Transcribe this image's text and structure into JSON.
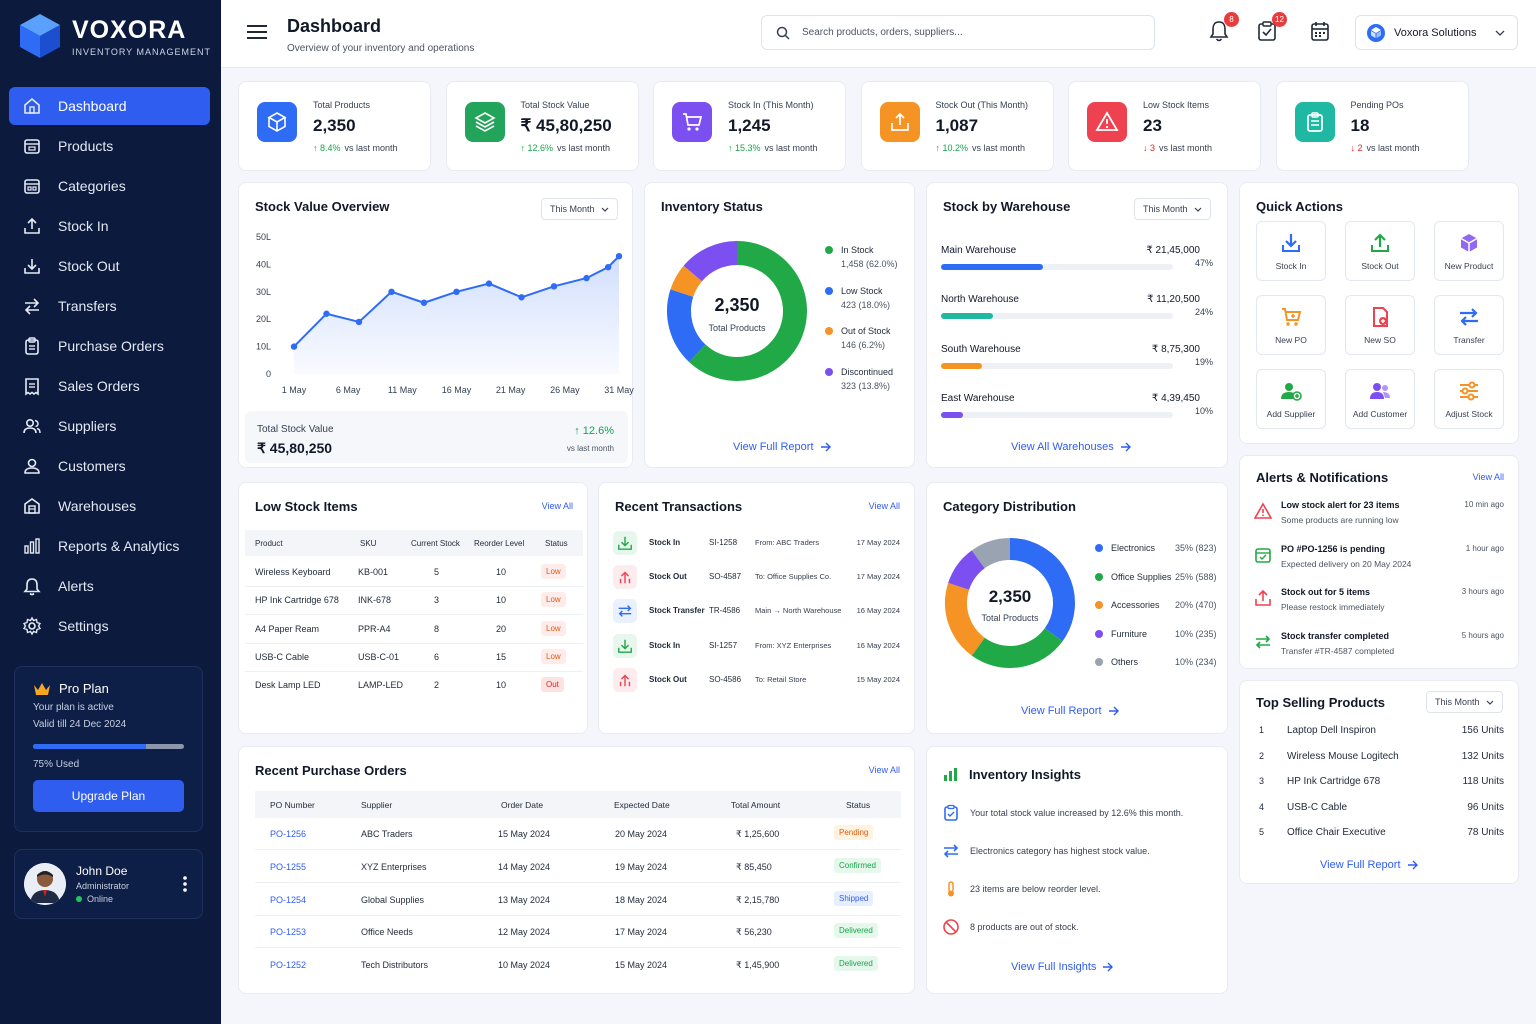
{
  "brand": {
    "name": "VOXORA",
    "subtitle": "INVENTORY MANAGEMENT"
  },
  "nav": [
    {
      "label": "Dashboard",
      "icon": "home-icon"
    },
    {
      "label": "Products",
      "icon": "box-icon"
    },
    {
      "label": "Categories",
      "icon": "calendar-grid-icon"
    },
    {
      "label": "Stock In",
      "icon": "upload-tray-icon"
    },
    {
      "label": "Stock Out",
      "icon": "download-tray-icon"
    },
    {
      "label": "Transfers",
      "icon": "arrows-icon"
    },
    {
      "label": "Purchase Orders",
      "icon": "clipboard-icon"
    },
    {
      "label": "Sales Orders",
      "icon": "receipt-icon"
    },
    {
      "label": "Suppliers",
      "icon": "users-icon"
    },
    {
      "label": "Customers",
      "icon": "user-icon"
    },
    {
      "label": "Warehouses",
      "icon": "building-icon"
    },
    {
      "label": "Reports & Analytics",
      "icon": "bar-chart-icon"
    },
    {
      "label": "Alerts",
      "icon": "bell-icon"
    },
    {
      "label": "Settings",
      "icon": "gear-icon"
    }
  ],
  "plan": {
    "title": "Pro Plan",
    "status": "Your plan is active",
    "valid": "Valid till 24 Dec 2024",
    "used_label": "75% Used",
    "used": 0.75,
    "button": "Upgrade Plan"
  },
  "user": {
    "name": "John Doe",
    "role": "Administrator",
    "status": "Online"
  },
  "header": {
    "title": "Dashboard",
    "subtitle": "Overview of your inventory and operations",
    "search_placeholder": "Search products, orders, suppliers...",
    "notif_count": "8",
    "orders_count": "12",
    "org": "Voxora Solutions"
  },
  "stats": [
    {
      "label": "Total Products",
      "value": "2,350",
      "change": "8.4%",
      "note": "vs last month",
      "dir": "up",
      "color": "#2f6cf5",
      "icon": "cube-icon"
    },
    {
      "label": "Total Stock Value",
      "value": "₹ 45,80,250",
      "change": "12.6%",
      "note": "vs last month",
      "dir": "up",
      "color": "#22a45a",
      "icon": "layers-icon"
    },
    {
      "label": "Stock In (This Month)",
      "value": "1,245",
      "change": "15.3%",
      "note": "vs last month",
      "dir": "up",
      "color": "#7b4ff0",
      "icon": "cart-icon"
    },
    {
      "label": "Stock Out (This Month)",
      "value": "1,087",
      "change": "10.2%",
      "note": "vs last month",
      "dir": "up",
      "color": "#f59324",
      "icon": "tray-out-icon"
    },
    {
      "label": "Low Stock Items",
      "value": "23",
      "change": "3",
      "note": "vs last month",
      "dir": "down",
      "color": "#ef4250",
      "icon": "warning-icon"
    },
    {
      "label": "Pending POs",
      "value": "18",
      "change": "2",
      "note": "vs last month",
      "dir": "down",
      "color": "#1fb9a3",
      "icon": "clipboard-icon"
    }
  ],
  "stock_value": {
    "title": "Stock Value Overview",
    "period": "This Month",
    "total_label": "Total Stock Value",
    "total": "₹ 45,80,250",
    "change": "12.6%",
    "change_note": "vs last month"
  },
  "chart_data": {
    "type": "area",
    "title": "Stock Value Overview",
    "x": [
      1,
      4,
      7,
      10,
      13,
      16,
      19,
      22,
      25,
      28,
      30,
      31
    ],
    "values": [
      10,
      22,
      19,
      30,
      26,
      30,
      33,
      28,
      32,
      35,
      39,
      43
    ],
    "xticks": [
      "1 May",
      "6 May",
      "11 May",
      "16 May",
      "21 May",
      "26 May",
      "31 May"
    ],
    "yticks": [
      "0",
      "10L",
      "20L",
      "30L",
      "40L",
      "50L"
    ],
    "ylim": [
      0,
      50
    ],
    "grid": false,
    "color": "#2f6cf5"
  },
  "inventory_status": {
    "title": "Inventory Status",
    "center_value": "2,350",
    "center_label": "Total Products",
    "link": "View Full Report",
    "items": [
      {
        "name": "In Stock",
        "detail": "1,458 (62.0%)",
        "share": 62.0,
        "color": "#22a947"
      },
      {
        "name": "Low Stock",
        "detail": "423 (18.0%)",
        "share": 18.0,
        "color": "#2f6cf5"
      },
      {
        "name": "Out of Stock",
        "detail": "146 (6.2%)",
        "share": 6.2,
        "color": "#f59324"
      },
      {
        "name": "Discontinued",
        "detail": "323 (13.8%)",
        "share": 13.8,
        "color": "#7b4ff0"
      }
    ]
  },
  "warehouses": {
    "title": "Stock by Warehouse",
    "period": "This Month",
    "link": "View All Warehouses",
    "items": [
      {
        "name": "Main Warehouse",
        "value": "₹ 21,45,000",
        "pct": "47%",
        "share": 0.47,
        "color": "#2f6cf5"
      },
      {
        "name": "North Warehouse",
        "value": "₹ 11,20,500",
        "pct": "24%",
        "share": 0.24,
        "color": "#1fb9a3"
      },
      {
        "name": "South Warehouse",
        "value": "₹ 8,75,300",
        "pct": "19%",
        "share": 0.19,
        "color": "#f59324"
      },
      {
        "name": "East Warehouse",
        "value": "₹ 4,39,450",
        "pct": "10%",
        "share": 0.1,
        "color": "#7b4ff0"
      }
    ]
  },
  "quick_actions": {
    "title": "Quick Actions",
    "items": [
      {
        "label": "Stock In",
        "icon": "stock-in-icon",
        "color": "#2f6cf5"
      },
      {
        "label": "Stock Out",
        "icon": "stock-out-icon",
        "color": "#22a947"
      },
      {
        "label": "New Product",
        "icon": "new-product-icon",
        "color": "#7b4ff0"
      },
      {
        "label": "New PO",
        "icon": "new-po-icon",
        "color": "#f59324"
      },
      {
        "label": "New SO",
        "icon": "new-so-icon",
        "color": "#ef4250"
      },
      {
        "label": "Transfer",
        "icon": "transfer-icon",
        "color": "#2f6cf5"
      },
      {
        "label": "Add Supplier",
        "icon": "add-supplier-icon",
        "color": "#22a947"
      },
      {
        "label": "Add Customer",
        "icon": "add-customer-icon",
        "color": "#7b4ff0"
      },
      {
        "label": "Adjust Stock",
        "icon": "adjust-stock-icon",
        "color": "#f59324"
      }
    ]
  },
  "low_stock": {
    "title": "Low Stock Items",
    "view_all": "View All",
    "columns": [
      "Product",
      "SKU",
      "Current Stock",
      "Reorder Level",
      "Status"
    ],
    "rows": [
      {
        "product": "Wireless Keyboard",
        "sku": "KB-001",
        "current": "5",
        "reorder": "10",
        "status": "Low"
      },
      {
        "product": "HP Ink Cartridge 678",
        "sku": "INK-678",
        "current": "3",
        "reorder": "10",
        "status": "Low"
      },
      {
        "product": "A4 Paper Ream",
        "sku": "PPR-A4",
        "current": "8",
        "reorder": "20",
        "status": "Low"
      },
      {
        "product": "USB-C Cable",
        "sku": "USB-C-01",
        "current": "6",
        "reorder": "15",
        "status": "Low"
      },
      {
        "product": "Desk Lamp LED",
        "sku": "LAMP-LED",
        "current": "2",
        "reorder": "10",
        "status": "Out"
      }
    ]
  },
  "transactions": {
    "title": "Recent Transactions",
    "view_all": "View All",
    "rows": [
      {
        "type": "Stock In",
        "id": "SI-1258",
        "detail": "From: ABC Traders",
        "date": "17 May 2024",
        "kind": "in"
      },
      {
        "type": "Stock Out",
        "id": "SO-4587",
        "detail": "To: Office Supplies Co.",
        "date": "17 May 2024",
        "kind": "out"
      },
      {
        "type": "Stock Transfer",
        "id": "TR-4586",
        "detail": "Main → North Warehouse",
        "date": "16 May 2024",
        "kind": "transfer"
      },
      {
        "type": "Stock In",
        "id": "SI-1257",
        "detail": "From: XYZ Enterprises",
        "date": "16 May 2024",
        "kind": "in"
      },
      {
        "type": "Stock Out",
        "id": "SO-4586",
        "detail": "To: Retail Store",
        "date": "15 May 2024",
        "kind": "out"
      }
    ]
  },
  "categories": {
    "title": "Category Distribution",
    "center_value": "2,350",
    "center_label": "Total Products",
    "link": "View Full Report",
    "items": [
      {
        "name": "Electronics",
        "detail": "35% (823)",
        "share": 35,
        "color": "#2f6cf5"
      },
      {
        "name": "Office Supplies",
        "detail": "25% (588)",
        "share": 25,
        "color": "#22a947"
      },
      {
        "name": "Accessories",
        "detail": "20% (470)",
        "share": 20,
        "color": "#f59324"
      },
      {
        "name": "Furniture",
        "detail": "10% (235)",
        "share": 10,
        "color": "#7b4ff0"
      },
      {
        "name": "Others",
        "detail": "10% (234)",
        "share": 10,
        "color": "#9aa3b2"
      }
    ]
  },
  "alerts": {
    "title": "Alerts & Notifications",
    "view_all": "View All",
    "items": [
      {
        "title": "Low stock alert for 23 items",
        "desc": "Some products are running low",
        "time": "10 min ago",
        "color": "#ef4250",
        "icon": "warning-icon"
      },
      {
        "title": "PO #PO-1256 is pending",
        "desc": "Expected delivery on 20 May 2024",
        "time": "1 hour ago",
        "color": "#22a947",
        "icon": "calendar-icon"
      },
      {
        "title": "Stock out for 5 items",
        "desc": "Please restock immediately",
        "time": "3 hours ago",
        "color": "#ef4250",
        "icon": "stock-out-icon"
      },
      {
        "title": "Stock transfer completed",
        "desc": "Transfer #TR-4587 completed",
        "time": "5 hours ago",
        "color": "#22a947",
        "icon": "transfer-icon"
      }
    ]
  },
  "purchase_orders": {
    "title": "Recent Purchase Orders",
    "view_all": "View All",
    "columns": [
      "PO Number",
      "Supplier",
      "Order Date",
      "Expected Date",
      "Total Amount",
      "Status"
    ],
    "rows": [
      {
        "po": "PO-1256",
        "supplier": "ABC Traders",
        "order": "15 May 2024",
        "expected": "20 May 2024",
        "amount": "₹ 1,25,600",
        "status": "Pending"
      },
      {
        "po": "PO-1255",
        "supplier": "XYZ Enterprises",
        "order": "14 May 2024",
        "expected": "19 May 2024",
        "amount": "₹ 85,450",
        "status": "Confirmed"
      },
      {
        "po": "PO-1254",
        "supplier": "Global Supplies",
        "order": "13 May 2024",
        "expected": "18 May 2024",
        "amount": "₹ 2,15,780",
        "status": "Shipped"
      },
      {
        "po": "PO-1253",
        "supplier": "Office Needs",
        "order": "12 May 2024",
        "expected": "17 May 2024",
        "amount": "₹ 56,230",
        "status": "Delivered"
      },
      {
        "po": "PO-1252",
        "supplier": "Tech Distributors",
        "order": "10 May 2024",
        "expected": "15 May 2024",
        "amount": "₹ 1,45,900",
        "status": "Delivered"
      }
    ]
  },
  "insights": {
    "title": "Inventory Insights",
    "link": "View Full Insights",
    "items": [
      {
        "text": "Your total stock value increased by 12.6% this month.",
        "color": "#2f6cf5",
        "icon": "clipboard-icon"
      },
      {
        "text": "Electronics category has highest stock value.",
        "color": "#2f6cf5",
        "icon": "transfer-icon"
      },
      {
        "text": "23 items are below reorder level.",
        "color": "#f59324",
        "icon": "thermometer-icon"
      },
      {
        "text": "8 products are out of stock.",
        "color": "#ef4250",
        "icon": "blocked-icon"
      }
    ]
  },
  "top_selling": {
    "title": "Top Selling Products",
    "period": "This Month",
    "link": "View Full Report",
    "items": [
      {
        "rank": "1",
        "name": "Laptop Dell Inspiron",
        "units": "156 Units"
      },
      {
        "rank": "2",
        "name": "Wireless Mouse Logitech",
        "units": "132 Units"
      },
      {
        "rank": "3",
        "name": "HP Ink Cartridge 678",
        "units": "118 Units"
      },
      {
        "rank": "4",
        "name": "USB-C Cable",
        "units": "96 Units"
      },
      {
        "rank": "5",
        "name": "Office Chair Executive",
        "units": "78 Units"
      }
    ]
  }
}
